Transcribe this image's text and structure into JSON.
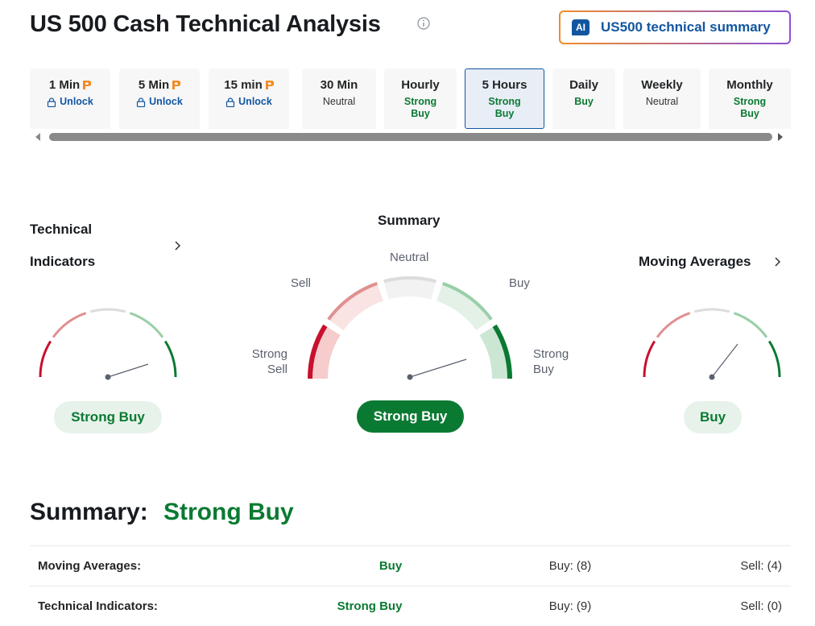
{
  "header": {
    "title": "US 500 Cash Technical Analysis",
    "ai_badge": "AI",
    "button": "US500 technical summary"
  },
  "tabs": [
    {
      "label": "1 Min",
      "status": "Unlock"
    },
    {
      "label": "5 Min",
      "status": "Unlock"
    },
    {
      "label": "15 min",
      "status": "Unlock"
    },
    {
      "label": "30 Min",
      "status": "Neutral"
    },
    {
      "label": "Hourly",
      "status": "Strong Buy"
    },
    {
      "label": "5 Hours",
      "status": "Strong Buy"
    },
    {
      "label": "Daily",
      "status": "Buy"
    },
    {
      "label": "Weekly",
      "status": "Neutral"
    },
    {
      "label": "Monthly",
      "status": "Strong Buy"
    }
  ],
  "gauges": {
    "technical": {
      "title": "Technical Indicators",
      "result": "Strong Buy"
    },
    "summary": {
      "title": "Summary",
      "scale": [
        "Strong Sell",
        "Sell",
        "Neutral",
        "Buy",
        "Strong Buy"
      ],
      "result": "Strong Buy"
    },
    "moving": {
      "title": "Moving Averages",
      "result": "Buy"
    }
  },
  "summary": {
    "label": "Summary:",
    "value": "Strong Buy"
  },
  "table": {
    "rows": [
      [
        "Moving Averages:",
        "Buy",
        "Buy: (8)",
        "Sell: (4)"
      ],
      [
        "Technical Indicators:",
        "Strong Buy",
        "Buy: (9)",
        "Sell: (0)"
      ]
    ]
  }
}
